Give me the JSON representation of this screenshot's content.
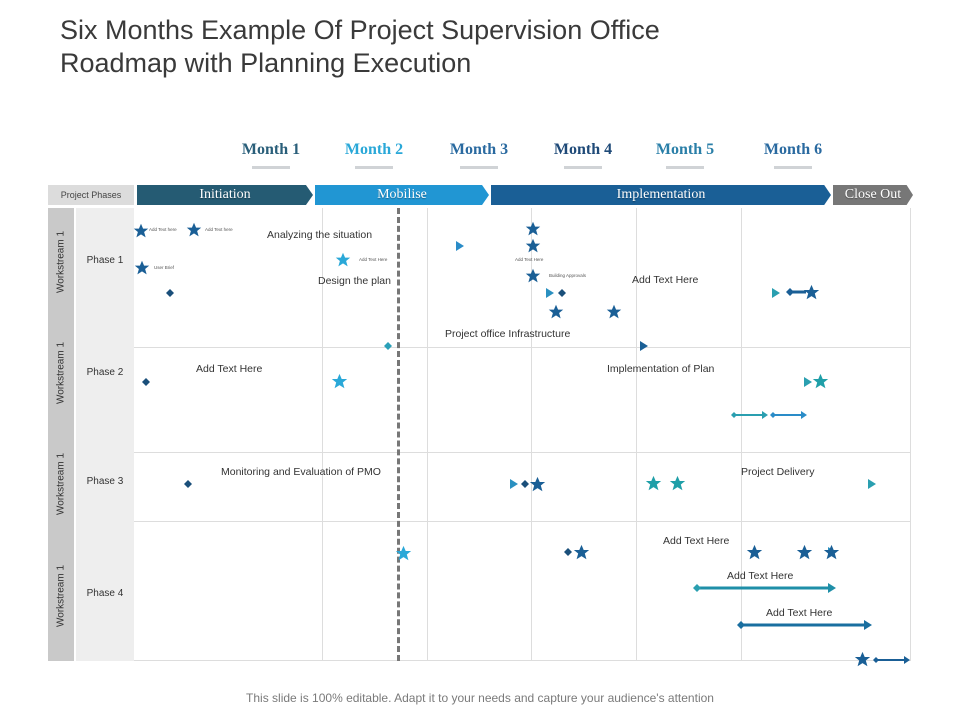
{
  "title_line1": "Six Months Example Of Project Supervision Office",
  "title_line2": "Roadmap with Planning Execution",
  "months": [
    {
      "label": "Month 1",
      "color": "#2a5f7a"
    },
    {
      "label": "Month 2",
      "color": "#2aa8d8"
    },
    {
      "label": "Month 3",
      "color": "#2a6aa0"
    },
    {
      "label": "Month 4",
      "color": "#1f4a78"
    },
    {
      "label": "Month 5",
      "color": "#2a7fa8"
    },
    {
      "label": "Month 6",
      "color": "#2a6aa0"
    }
  ],
  "project_phases_label": "Project Phases",
  "phases": [
    {
      "label": "Initiation",
      "color": "#255b73"
    },
    {
      "label": "Mobilise",
      "color": "#2196d3"
    },
    {
      "label": "Implementation",
      "color": "#1a5f96"
    },
    {
      "label": "Close Out",
      "color": "#777777"
    }
  ],
  "workstreams": [
    "Workstream 1",
    "Workstream 1",
    "Workstream 1",
    "Workstream 1"
  ],
  "rows": [
    "Phase 1",
    "Phase 2",
    "Phase 3",
    "Phase 4"
  ],
  "tasks": {
    "analyzing": "Analyzing the situation",
    "design": "Design the plan",
    "add1": "Add Text Here",
    "infra": "Project office Infrastructure",
    "add2": "Add Text Here",
    "impl_plan": "Implementation of Plan",
    "monitoring": "Monitoring and Evaluation of  PMO",
    "delivery": "Project Delivery",
    "add3": "Add Text Here",
    "add4": "Add Text Here",
    "add5": "Add Text Here"
  },
  "milestones": {
    "m1": "Add Text here",
    "m2": "Add Text here",
    "m3": "User Brief",
    "m4": "Add Text Here",
    "m5": "Add Text Here",
    "m6": "Building Approvals"
  },
  "footer": "This slide is 100% editable. Adapt it to your needs and capture your audience's attention"
}
